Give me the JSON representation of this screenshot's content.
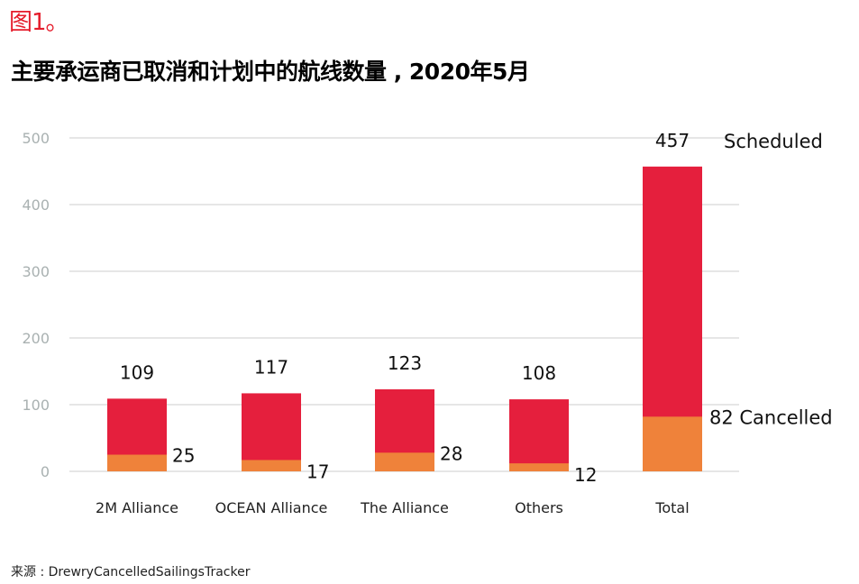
{
  "figure_label": "图1。",
  "title": "主要承运商已取消和计划中的航线数量 , 2020年5月",
  "source": "来源 : DrewryCancelledSailingsTracker",
  "colors": {
    "scheduled": "#e51f3d",
    "cancelled": "#ef823a",
    "grid": "#dedede",
    "tick": "#a9b1b1"
  },
  "chart_data": {
    "type": "bar",
    "mode": "overlapping",
    "title": "主要承运商已取消和计划中的航线数量 , 2020年5月",
    "xlabel": "",
    "ylabel": "",
    "ylim": [
      0,
      500
    ],
    "yticks": [
      0,
      100,
      200,
      300,
      400,
      500
    ],
    "grid": true,
    "categories": [
      "2M Alliance",
      "OCEAN Alliance",
      "The Alliance",
      "Others",
      "Total"
    ],
    "series": [
      {
        "name": "Scheduled",
        "values": [
          109,
          117,
          123,
          108,
          457
        ]
      },
      {
        "name": "Cancelled",
        "values": [
          25,
          17,
          28,
          12,
          82
        ]
      }
    ],
    "legend": {
      "placement": "inline-right-of-total-bar",
      "scheduled_label": "Scheduled",
      "cancelled_label": "Cancelled"
    }
  }
}
